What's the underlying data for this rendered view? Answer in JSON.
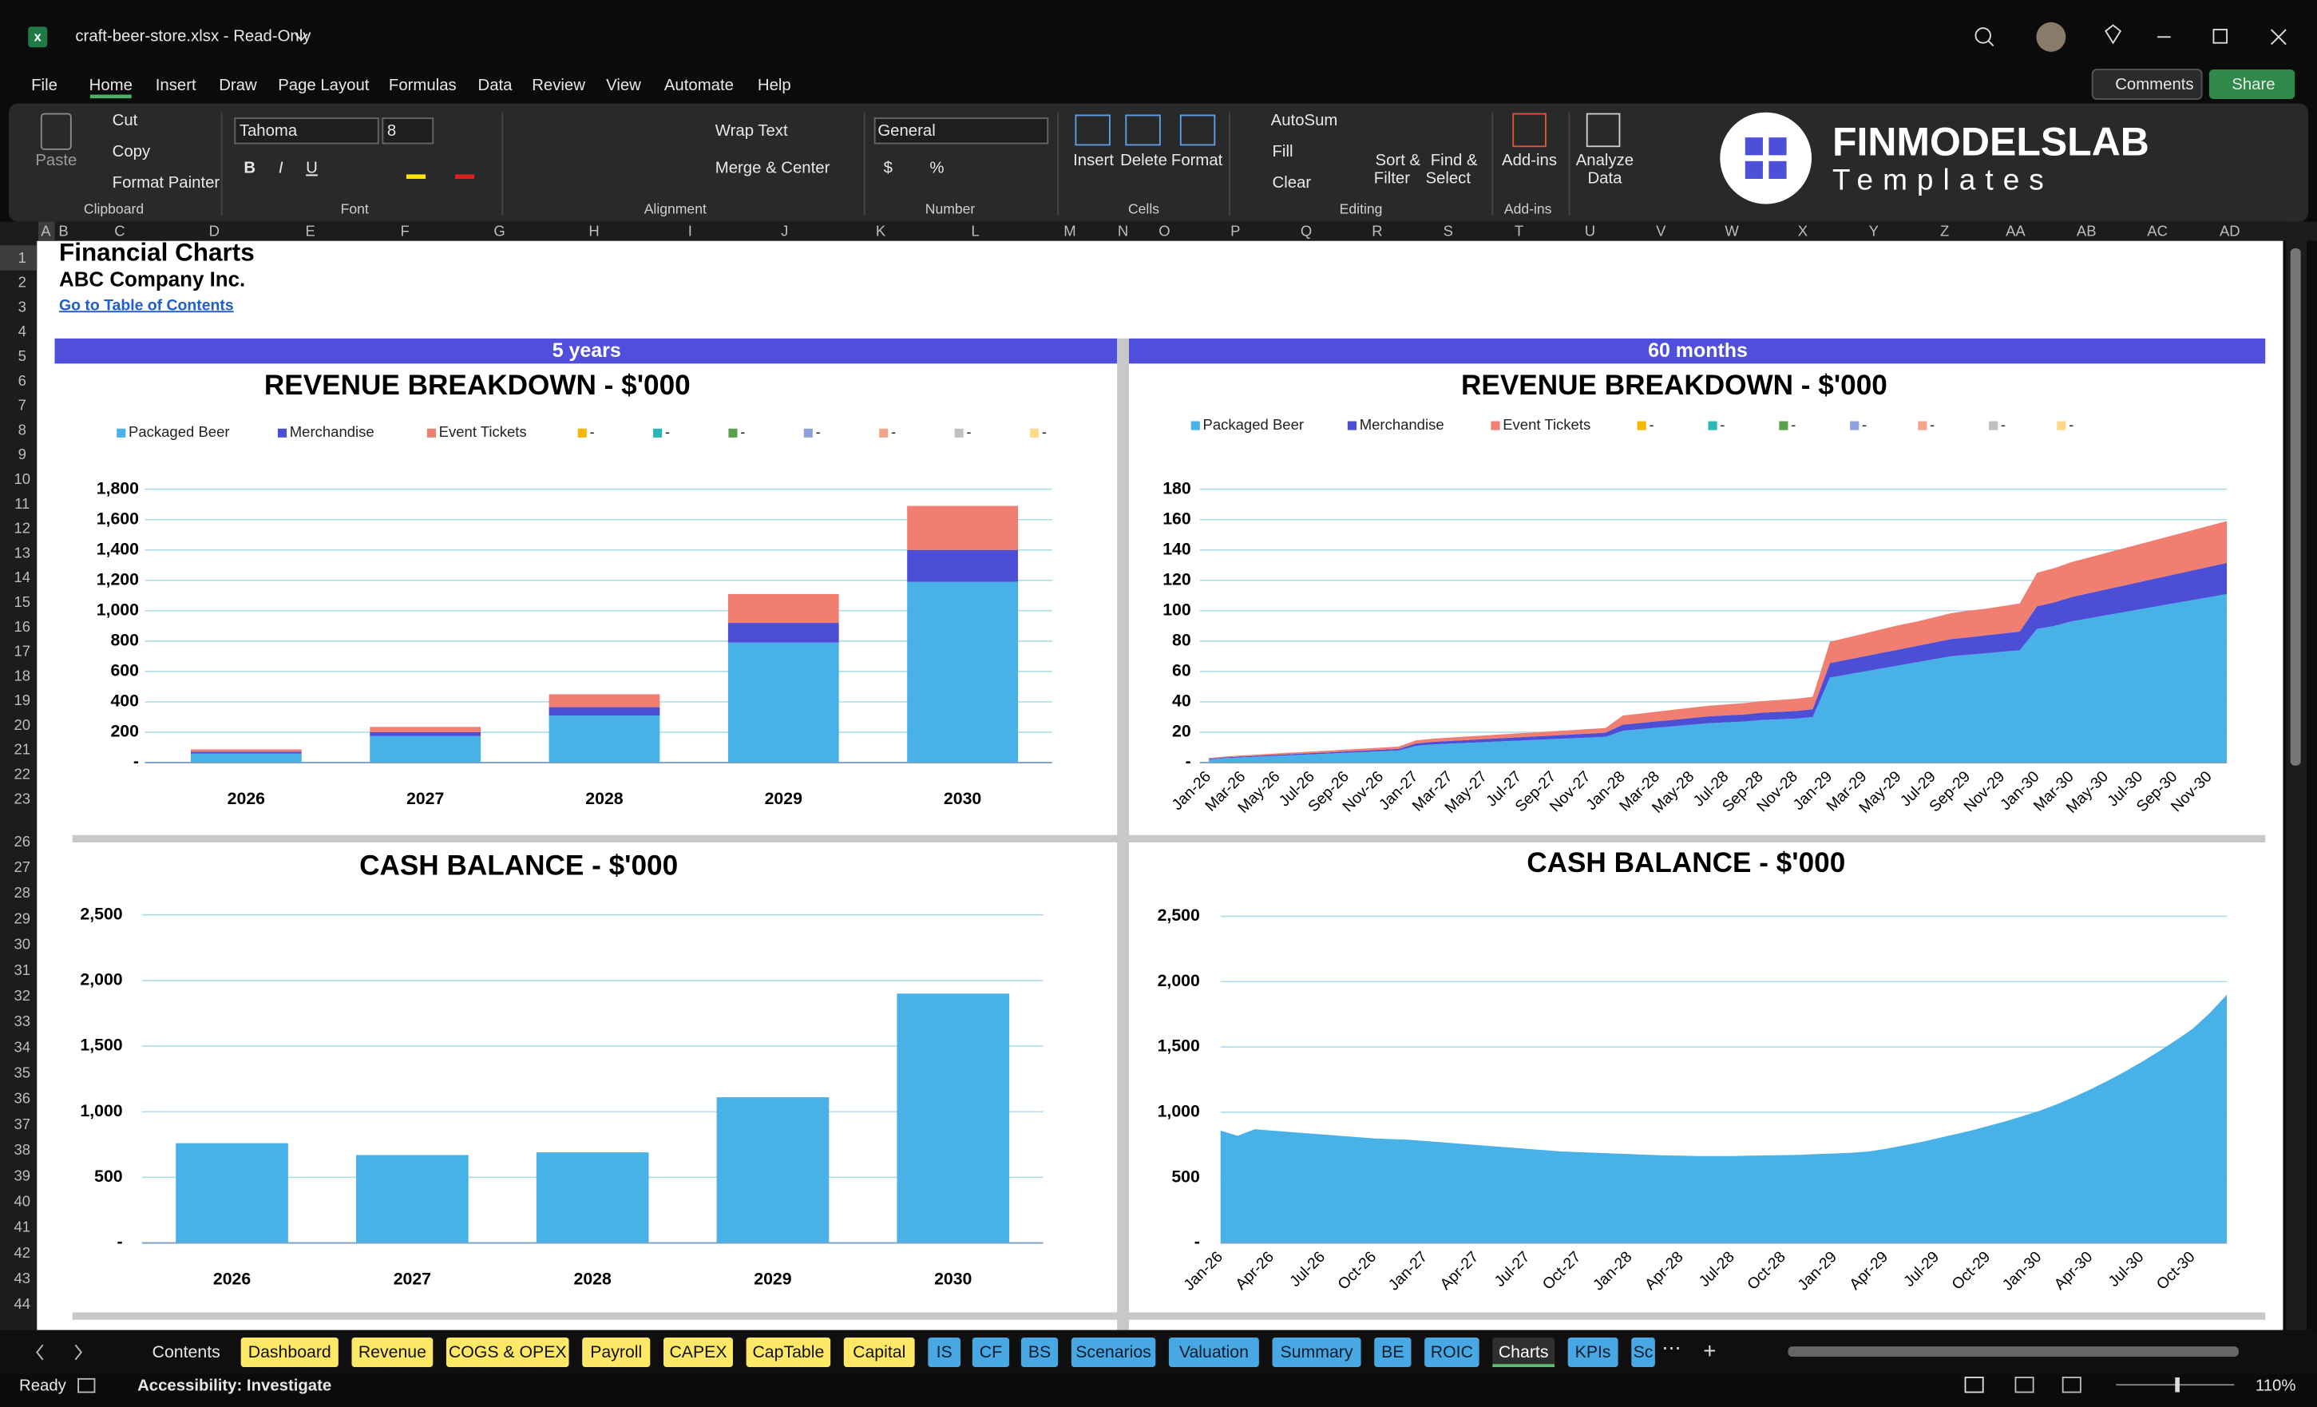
{
  "window": {
    "title": "craft-beer-store.xlsx  -  Read-Only"
  },
  "menu": [
    "File",
    "Home",
    "Insert",
    "Draw",
    "Page Layout",
    "Formulas",
    "Data",
    "Review",
    "View",
    "Automate",
    "Help"
  ],
  "buttons": {
    "comments": "Comments",
    "share": "Share"
  },
  "ribbon": {
    "paste": "Paste",
    "cut": "Cut",
    "copy": "Copy",
    "format_painter": "Format Painter",
    "font": "Tahoma",
    "font_size": "8",
    "font_styles": [
      "B",
      "I",
      "U"
    ],
    "wrap_text": "Wrap Text",
    "merge_center": "Merge & Center",
    "number_format": "General",
    "currency": "$",
    "percent": "%",
    "insert": "Insert",
    "delete": "Delete",
    "format": "Format",
    "autosum": "AutoSum",
    "fill": "Fill",
    "clear": "Clear",
    "sort_filter": [
      "Sort &",
      "Filter"
    ],
    "find_select": [
      "Find &",
      "Select"
    ],
    "add_ins": "Add-ins",
    "analyze_data": [
      "Analyze",
      "Data"
    ],
    "groups": [
      "Clipboard",
      "Font",
      "Alignment",
      "Number",
      "Cells",
      "Editing",
      "Add-ins"
    ]
  },
  "logo": {
    "brand": "FINMODELSLAB",
    "tagline": "Templates"
  },
  "columns": [
    "A",
    "B",
    "C",
    "D",
    "E",
    "F",
    "G",
    "H",
    "I",
    "J",
    "K",
    "L",
    "M",
    "N",
    "O",
    "P",
    "Q",
    "R",
    "S",
    "T",
    "U",
    "V",
    "W",
    "X",
    "Y",
    "Z",
    "AA",
    "AB",
    "AC",
    "AD"
  ],
  "rows": [
    1,
    2,
    3,
    4,
    5,
    6,
    7,
    8,
    9,
    10,
    11,
    12,
    13,
    14,
    15,
    16,
    17,
    18,
    19,
    20,
    21,
    22,
    23,
    26,
    27,
    28,
    29,
    30,
    31,
    32,
    33,
    34,
    35,
    36,
    37,
    38,
    39,
    40,
    41,
    42,
    43,
    44
  ],
  "sheet": {
    "title": "Financial Charts",
    "company": "ABC Company Inc.",
    "link": "Go to Table of Contents",
    "sections": [
      "5 years",
      "60 months"
    ]
  },
  "chart_data": [
    {
      "type": "bar",
      "stacked": true,
      "title": "REVENUE BREAKDOWN - $'000",
      "categories": [
        "2026",
        "2027",
        "2028",
        "2029",
        "2030"
      ],
      "series": [
        {
          "name": "Packaged Beer",
          "color": "#48b1e8",
          "values": [
            60,
            175,
            310,
            790,
            1190
          ]
        },
        {
          "name": "Merchandise",
          "color": "#4c4fd6",
          "values": [
            12,
            25,
            55,
            130,
            210
          ]
        },
        {
          "name": "Event Tickets",
          "color": "#f07f72",
          "values": [
            15,
            35,
            85,
            190,
            290
          ]
        },
        {
          "name": "-",
          "color": "#f5b800"
        },
        {
          "name": "-",
          "color": "#2ab7b5"
        },
        {
          "name": "-",
          "color": "#5aa04a"
        },
        {
          "name": "-",
          "color": "#8f9fe0"
        },
        {
          "name": "-",
          "color": "#f3a58a"
        },
        {
          "name": "-",
          "color": "#c0c0c0"
        },
        {
          "name": "-",
          "color": "#ffd98a"
        }
      ],
      "ylim": [
        0,
        1800
      ],
      "yticks": [
        {
          "value": 0,
          "label": "-"
        },
        200,
        400,
        600,
        800,
        {
          "value": 1000,
          "label": "1,000"
        },
        {
          "value": 1200,
          "label": "1,200"
        },
        {
          "value": 1400,
          "label": "1,400"
        },
        {
          "value": 1600,
          "label": "1,600"
        },
        {
          "value": 1800,
          "label": "1,800"
        }
      ],
      "grid": true
    },
    {
      "type": "area",
      "stacked": true,
      "title": "REVENUE BREAKDOWN - $'000",
      "categories": [
        "Jan-26",
        null,
        "Mar-26",
        null,
        "May-26",
        null,
        "Jul-26",
        null,
        "Sep-26",
        null,
        "Nov-26",
        null,
        "Jan-27",
        null,
        "Mar-27",
        null,
        "May-27",
        null,
        "Jul-27",
        null,
        "Sep-27",
        null,
        "Nov-27",
        null,
        "Jan-28",
        null,
        "Mar-28",
        null,
        "May-28",
        null,
        "Jul-28",
        null,
        "Sep-28",
        null,
        "Nov-28",
        null,
        "Jan-29",
        null,
        "Mar-29",
        null,
        "May-29",
        null,
        "Jul-29",
        null,
        "Sep-29",
        null,
        "Nov-29",
        null,
        "Jan-30",
        null,
        "Mar-30",
        null,
        "May-30",
        null,
        "Jul-30",
        null,
        "Sep-30",
        null,
        "Nov-30",
        null
      ],
      "series": [
        {
          "name": "Packaged Beer",
          "color": "#48b1e8",
          "values": [
            2,
            3,
            3.5,
            4,
            4.5,
            5,
            5.5,
            6,
            6.5,
            7,
            7.5,
            8,
            11,
            12,
            12.5,
            13,
            13.5,
            14,
            14.5,
            15,
            15.5,
            16,
            16.5,
            17,
            21,
            22,
            23,
            24,
            25,
            26,
            26.5,
            27,
            28,
            28.5,
            29,
            30,
            56,
            58,
            60,
            62,
            64,
            66,
            68,
            70,
            71,
            72,
            73,
            74,
            88,
            90,
            93,
            95,
            97,
            99,
            101,
            103,
            105,
            107,
            109,
            111
          ]
        },
        {
          "name": "Merchandise",
          "color": "#4c4fd6",
          "values": [
            0.5,
            0.5,
            0.6,
            0.6,
            0.7,
            0.7,
            0.8,
            0.8,
            0.9,
            0.9,
            1,
            1,
            1.6,
            1.7,
            1.8,
            1.9,
            2,
            2.1,
            2.2,
            2.3,
            2.4,
            2.5,
            2.6,
            2.7,
            4,
            4.1,
            4.2,
            4.3,
            4.4,
            4.5,
            4.6,
            4.7,
            4.8,
            4.9,
            5,
            5.1,
            9.5,
            9.8,
            10,
            10.3,
            10.5,
            10.8,
            11,
            11.3,
            11.5,
            11.8,
            12,
            12.3,
            15,
            15.5,
            16,
            16.5,
            17,
            17.5,
            18,
            18.5,
            19,
            19.5,
            20,
            20.5
          ]
        },
        {
          "name": "Event Tickets",
          "color": "#f07f72",
          "values": [
            0.5,
            0.6,
            0.7,
            0.8,
            0.9,
            1,
            1,
            1.1,
            1.2,
            1.3,
            1.4,
            1.5,
            2,
            2.1,
            2.2,
            2.3,
            2.4,
            2.5,
            2.6,
            2.7,
            2.8,
            2.9,
            3,
            3.1,
            6,
            6.2,
            6.4,
            6.6,
            6.8,
            7,
            7.2,
            7.4,
            7.6,
            7.8,
            8,
            8.2,
            14,
            14.5,
            15,
            15.5,
            16,
            16,
            16.5,
            17,
            17.5,
            17.5,
            18,
            18.5,
            22,
            22.5,
            23,
            23.5,
            24,
            24.5,
            25,
            25.5,
            26,
            26.5,
            27,
            27.5
          ]
        },
        {
          "name": "-",
          "color": "#f5b800"
        },
        {
          "name": "-",
          "color": "#2ab7b5"
        },
        {
          "name": "-",
          "color": "#5aa04a"
        },
        {
          "name": "-",
          "color": "#8f9fe0"
        },
        {
          "name": "-",
          "color": "#f3a58a"
        },
        {
          "name": "-",
          "color": "#c0c0c0"
        },
        {
          "name": "-",
          "color": "#ffd98a"
        }
      ],
      "ylim": [
        0,
        180
      ],
      "yticks": [
        {
          "value": 0,
          "label": "-"
        },
        20,
        40,
        60,
        80,
        100,
        120,
        140,
        160,
        180
      ],
      "grid": true
    },
    {
      "type": "bar",
      "title": "CASH BALANCE - $'000",
      "categories": [
        "2026",
        "2027",
        "2028",
        "2029",
        "2030"
      ],
      "values": [
        760,
        670,
        690,
        1110,
        1900
      ],
      "color": "#48b1e8",
      "ylim": [
        0,
        2500
      ],
      "yticks": [
        {
          "value": 0,
          "label": "-"
        },
        500,
        {
          "value": 1000,
          "label": "1,000"
        },
        {
          "value": 1500,
          "label": "1,500"
        },
        {
          "value": 2000,
          "label": "2,000"
        },
        {
          "value": 2500,
          "label": "2,500"
        }
      ],
      "grid": true
    },
    {
      "type": "area",
      "title": "CASH BALANCE - $'000",
      "categories": [
        "Jan-26",
        null,
        null,
        "Apr-26",
        null,
        null,
        "Jul-26",
        null,
        null,
        "Oct-26",
        null,
        null,
        "Jan-27",
        null,
        null,
        "Apr-27",
        null,
        null,
        "Jul-27",
        null,
        null,
        "Oct-27",
        null,
        null,
        "Jan-28",
        null,
        null,
        "Apr-28",
        null,
        null,
        "Jul-28",
        null,
        null,
        "Oct-28",
        null,
        null,
        "Jan-29",
        null,
        null,
        "Apr-29",
        null,
        null,
        "Jul-29",
        null,
        null,
        "Oct-29",
        null,
        null,
        "Jan-30",
        null,
        null,
        "Apr-30",
        null,
        null,
        "Jul-30",
        null,
        null,
        "Oct-30",
        null,
        null
      ],
      "values": [
        860,
        820,
        870,
        860,
        850,
        840,
        830,
        820,
        810,
        800,
        795,
        790,
        780,
        770,
        760,
        750,
        740,
        730,
        720,
        710,
        700,
        695,
        690,
        685,
        680,
        675,
        670,
        668,
        665,
        665,
        665,
        668,
        670,
        672,
        675,
        680,
        685,
        690,
        700,
        720,
        745,
        770,
        800,
        830,
        860,
        895,
        930,
        970,
        1010,
        1060,
        1115,
        1175,
        1240,
        1310,
        1385,
        1465,
        1550,
        1640,
        1760,
        1900
      ],
      "color": "#48b1e8",
      "ylim": [
        0,
        2500
      ],
      "yticks": [
        {
          "value": 0,
          "label": "-"
        },
        500,
        {
          "value": 1000,
          "label": "1,000"
        },
        {
          "value": 1500,
          "label": "1,500"
        },
        {
          "value": 2000,
          "label": "2,000"
        },
        {
          "value": 2500,
          "label": "2,500"
        }
      ],
      "grid": true
    }
  ],
  "tabs": [
    {
      "label": "Contents",
      "style": "plain"
    },
    {
      "label": "Dashboard",
      "style": "yellow"
    },
    {
      "label": "Revenue",
      "style": "yellow"
    },
    {
      "label": "COGS & OPEX",
      "style": "yellow"
    },
    {
      "label": "Payroll",
      "style": "yellow"
    },
    {
      "label": "CAPEX",
      "style": "yellow"
    },
    {
      "label": "CapTable",
      "style": "yellow"
    },
    {
      "label": "Capital",
      "style": "yellow"
    },
    {
      "label": "IS",
      "style": "blue"
    },
    {
      "label": "CF",
      "style": "blue"
    },
    {
      "label": "BS",
      "style": "blue"
    },
    {
      "label": "Scenarios",
      "style": "blue"
    },
    {
      "label": "Valuation",
      "style": "blue"
    },
    {
      "label": "Summary",
      "style": "blue"
    },
    {
      "label": "BE",
      "style": "blue"
    },
    {
      "label": "ROIC",
      "style": "blue"
    },
    {
      "label": "Charts",
      "style": "active"
    },
    {
      "label": "KPIs",
      "style": "blue"
    },
    {
      "label": "Sc",
      "style": "blue"
    }
  ],
  "status": {
    "ready": "Ready",
    "accessibility": "Accessibility: Investigate",
    "zoom": "110%"
  }
}
